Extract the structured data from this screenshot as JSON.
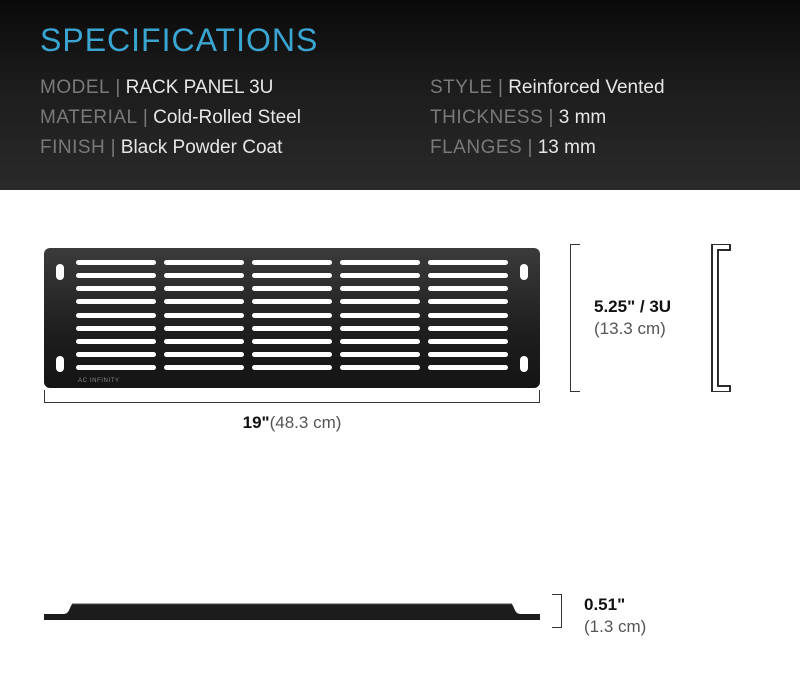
{
  "header": {
    "title": "SPECIFICATIONS",
    "title_color": "#3aa5d1",
    "left": [
      {
        "label": "MODEL",
        "value": "RACK PANEL 3U"
      },
      {
        "label": "MATERIAL",
        "value": "Cold-Rolled Steel"
      },
      {
        "label": "FINISH",
        "value": "Black Powder Coat"
      }
    ],
    "right": [
      {
        "label": "STYLE",
        "value": "Reinforced Vented"
      },
      {
        "label": "THICKNESS",
        "value": "3 mm"
      },
      {
        "label": "FLANGES",
        "value": "13 mm"
      }
    ]
  },
  "panel": {
    "brand": "AC INFINITY",
    "vent_columns": 5,
    "vent_rows": 9,
    "body_gradient_top": "#3b3b3b",
    "body_gradient_bottom": "#141414"
  },
  "dimensions": {
    "width_primary": "19\"",
    "width_secondary": "(48.3 cm)",
    "height_primary": "5.25\" / 3U",
    "height_secondary": "(13.3 cm)",
    "depth_primary": "0.51\"",
    "depth_secondary": "(1.3 cm)"
  },
  "colors": {
    "accent": "#3aa5d1",
    "label_muted": "#7a7a7a",
    "value_text": "#e6e6e6",
    "dim_text": "#111111",
    "dim_secondary": "#555555",
    "dim_line": "#333333"
  }
}
